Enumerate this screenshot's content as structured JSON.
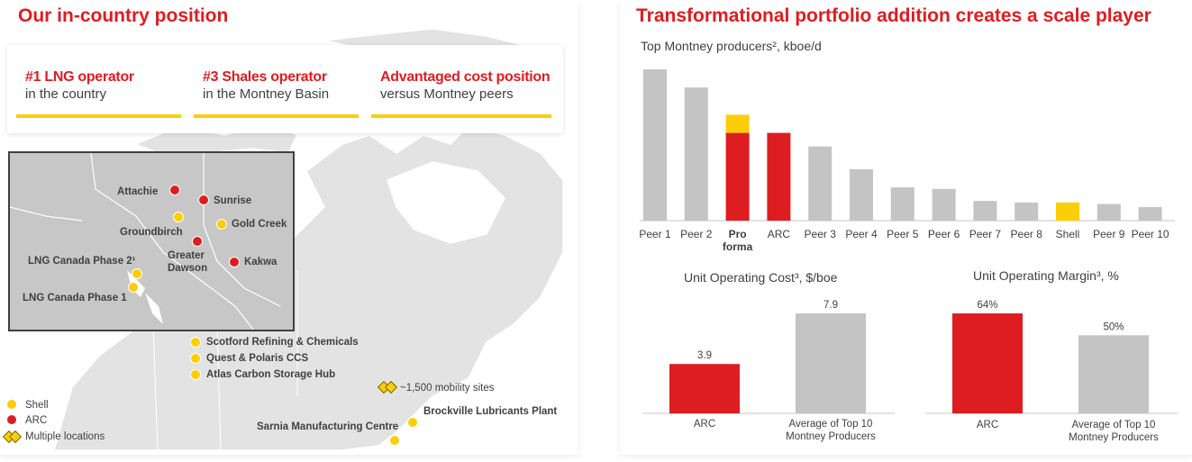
{
  "left": {
    "title": "Our in-country position",
    "stats": [
      {
        "headline": "#1 LNG operator",
        "sub": "in the country"
      },
      {
        "headline": "#3 Shales operator",
        "sub": "in the Montney Basin"
      },
      {
        "headline": "Advantaged cost position",
        "sub": "versus Montney peers"
      }
    ],
    "inset_locations": {
      "attachie": "Attachie",
      "sunrise": "Sunrise",
      "groundbirch": "Groundbirch",
      "gold_creek": "Gold Creek",
      "greater_dawson_1": "Greater",
      "greater_dawson_2": "Dawson",
      "kakwa": "Kakwa",
      "lng_phase2": "LNG Canada Phase 2¹",
      "lng_phase1": "LNG Canada Phase 1"
    },
    "map_locations": {
      "scotford": "Scotford Refining & Chemicals",
      "quest": "Quest & Polaris CCS",
      "atlas": "Atlas Carbon Storage Hub",
      "mobility": "~1,500 mobility sites",
      "brockville": "Brockville Lubricants Plant",
      "sarnia": "Sarnia Manufacturing Centre"
    },
    "legend": {
      "shell": "Shell",
      "arc": "ARC",
      "multiple": "Multiple locations"
    }
  },
  "colors": {
    "shell_yellow": "#fbce07",
    "shell_red": "#dd1d21",
    "peer_grey": "#c4c4c4",
    "map_grey": "#c7c7c7",
    "text_dark": "#404040"
  },
  "right": {
    "title": "Transformational portfolio addition creates a scale player",
    "producers_subtitle": "Top Montney producers², kboe/d",
    "cost_title": "Unit Operating Cost³, $/boe",
    "margin_title": "Unit Operating Margin³, %"
  },
  "chart_data": [
    {
      "type": "bar",
      "title": "Top Montney producers², kboe/d",
      "categories": [
        "Peer 1",
        "Peer 2",
        "Pro forma",
        "ARC",
        "Peer 3",
        "Peer 4",
        "Peer 5",
        "Peer 6",
        "Peer 7",
        "Peer 8",
        "Shell",
        "Peer 9",
        "Peer 10"
      ],
      "values": [
        100,
        88,
        70,
        58,
        49,
        34,
        22,
        21,
        13,
        12,
        12,
        11,
        9
      ],
      "stacked_pro_forma": {
        "arc": 58,
        "shell": 12
      },
      "bar_colors": [
        "grey",
        "grey",
        "stack",
        "red",
        "grey",
        "grey",
        "grey",
        "grey",
        "grey",
        "grey",
        "yellow",
        "grey",
        "grey"
      ],
      "ylim": [
        0,
        100
      ],
      "xlabel": "",
      "ylabel": "",
      "grid": false
    },
    {
      "type": "bar",
      "title": "Unit Operating Cost³, $/boe",
      "categories": [
        "ARC",
        "Average of Top 10 Montney Producers"
      ],
      "values": [
        3.9,
        7.9
      ],
      "data_labels": [
        "3.9",
        "7.9"
      ],
      "bar_colors": [
        "red",
        "grey"
      ],
      "ylim": [
        0,
        7.9
      ]
    },
    {
      "type": "bar",
      "title": "Unit Operating Margin³, %",
      "categories": [
        "ARC",
        "Average of Top 10 Montney Producers"
      ],
      "values": [
        64,
        50
      ],
      "data_labels": [
        "64%",
        "50%"
      ],
      "bar_colors": [
        "red",
        "grey"
      ],
      "ylim": [
        0,
        64
      ]
    }
  ]
}
